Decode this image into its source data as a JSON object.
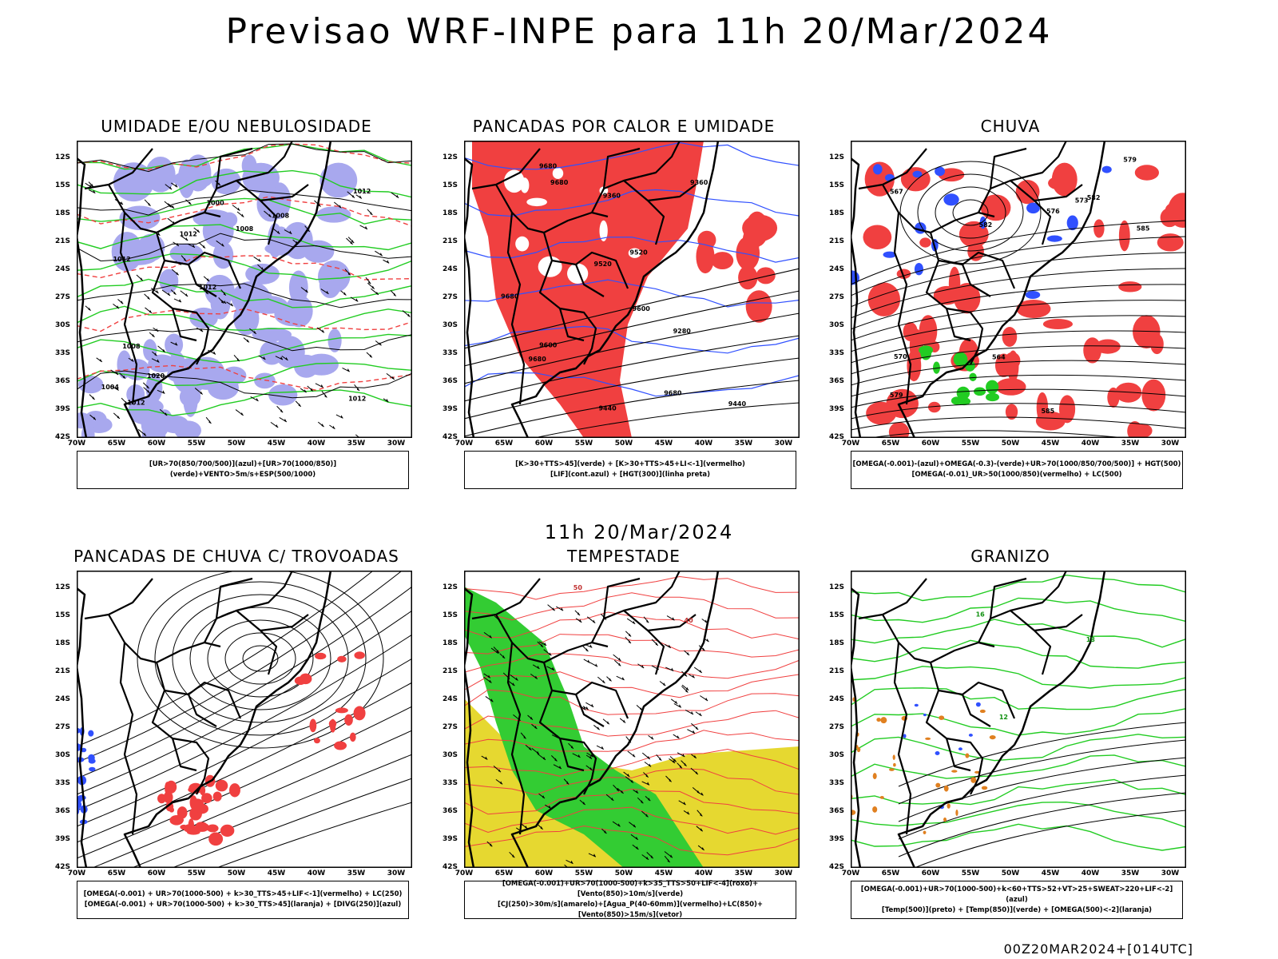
{
  "title": "Previsao WRF-INPE  para 11h 20/Mar/2024",
  "middle_title": "11h 20/Mar/2024",
  "footer": "00Z20MAR2024+[014UTC]",
  "axes": {
    "lat_labels": [
      "12S",
      "15S",
      "18S",
      "21S",
      "24S",
      "27S",
      "30S",
      "33S",
      "36S",
      "39S",
      "42S"
    ],
    "lon_labels": [
      "70W",
      "65W",
      "60W",
      "55W",
      "50W",
      "45W",
      "40W",
      "35W",
      "30W"
    ]
  },
  "colors": {
    "blue_shade": "#a8a8ee",
    "green": "#22cc22",
    "red": "#f04040",
    "blue": "#3050ff",
    "yellow": "#e6d830",
    "orange": "#e08020",
    "black": "#000000"
  },
  "panels": [
    {
      "title": "UMIDADE E/OU NEBULOSIDADE",
      "legend_lines": [
        "[UR>70(850/700/500)](azul)+[UR>70(1000/850)](verde)+VENTO>5m/s+ESP(500/1000)"
      ],
      "contour_labels": [
        "1012",
        "1012",
        "1012",
        "1012",
        "1008",
        "1012",
        "1000",
        "1008",
        "1008",
        "1012",
        "1004",
        "1020"
      ]
    },
    {
      "title": "PANCADAS POR CALOR E UMIDADE",
      "legend_lines": [
        "[K>30+TTS>45](verde) + [K>30+TTS>45+LI<-1](vermelho)",
        "[LIF](cont.azul) + [HGT(300)](linha preta)"
      ],
      "contour_labels": [
        "9680",
        "9680",
        "9600",
        "9680",
        "9680",
        "9680",
        "9440",
        "9520",
        "9600",
        "9520",
        "9360",
        "9440",
        "9360",
        "9280"
      ]
    },
    {
      "title": "CHUVA",
      "legend_lines": [
        "[OMEGA(-0.001)-(azul)+OMEGA(-0.3)-(verde)+UR>70(1000/850/700/500)] + HGT(500)",
        "[OMEGA(-0.01)_UR>50(1000/850)(vermelho) + LC(500)"
      ],
      "contour_labels": [
        "585",
        "582",
        "585",
        "579",
        "579",
        "576",
        "573",
        "570",
        "567",
        "564",
        "582"
      ]
    },
    {
      "title": "PANCADAS DE CHUVA C/ TROVOADAS",
      "legend_lines": [
        "[OMEGA(-0.001) + UR>70(1000-500) + k>30_TTS>45+LIF<-1](vermelho) + LC(250)",
        "[OMEGA(-0.001) + UR>70(1000-500) + k>30_TTS>45](laranja) + [DIVG(250)](azul)"
      ],
      "contour_labels": []
    },
    {
      "title": "TEMPESTADE",
      "legend_lines": [
        "[OMEGA(-0.001)+UR>70(1000-500)+k>35_TTS>50+LIF<-4](roxo)+[Vento(850)>10m/s](verde)",
        "[CJ(250)>30m/s](amarelo)+[Agua_P(40-60mm)](vermelho)+LC(850)+[Vento(850)>15m/s](vetor)"
      ],
      "contour_labels": [
        "50",
        "40"
      ]
    },
    {
      "title": "GRANIZO",
      "legend_lines": [
        "[OMEGA(-0.001)+UR>70(1000-500)+k<60+TTS>52+VT>25+SWEAT>220+LIF<-2](azul)",
        "[Temp(500)](preto) + [Temp(850)](verde) + [OMEGA(500)<-2](laranja)"
      ],
      "contour_labels": [
        "18",
        "12",
        "16"
      ]
    }
  ]
}
